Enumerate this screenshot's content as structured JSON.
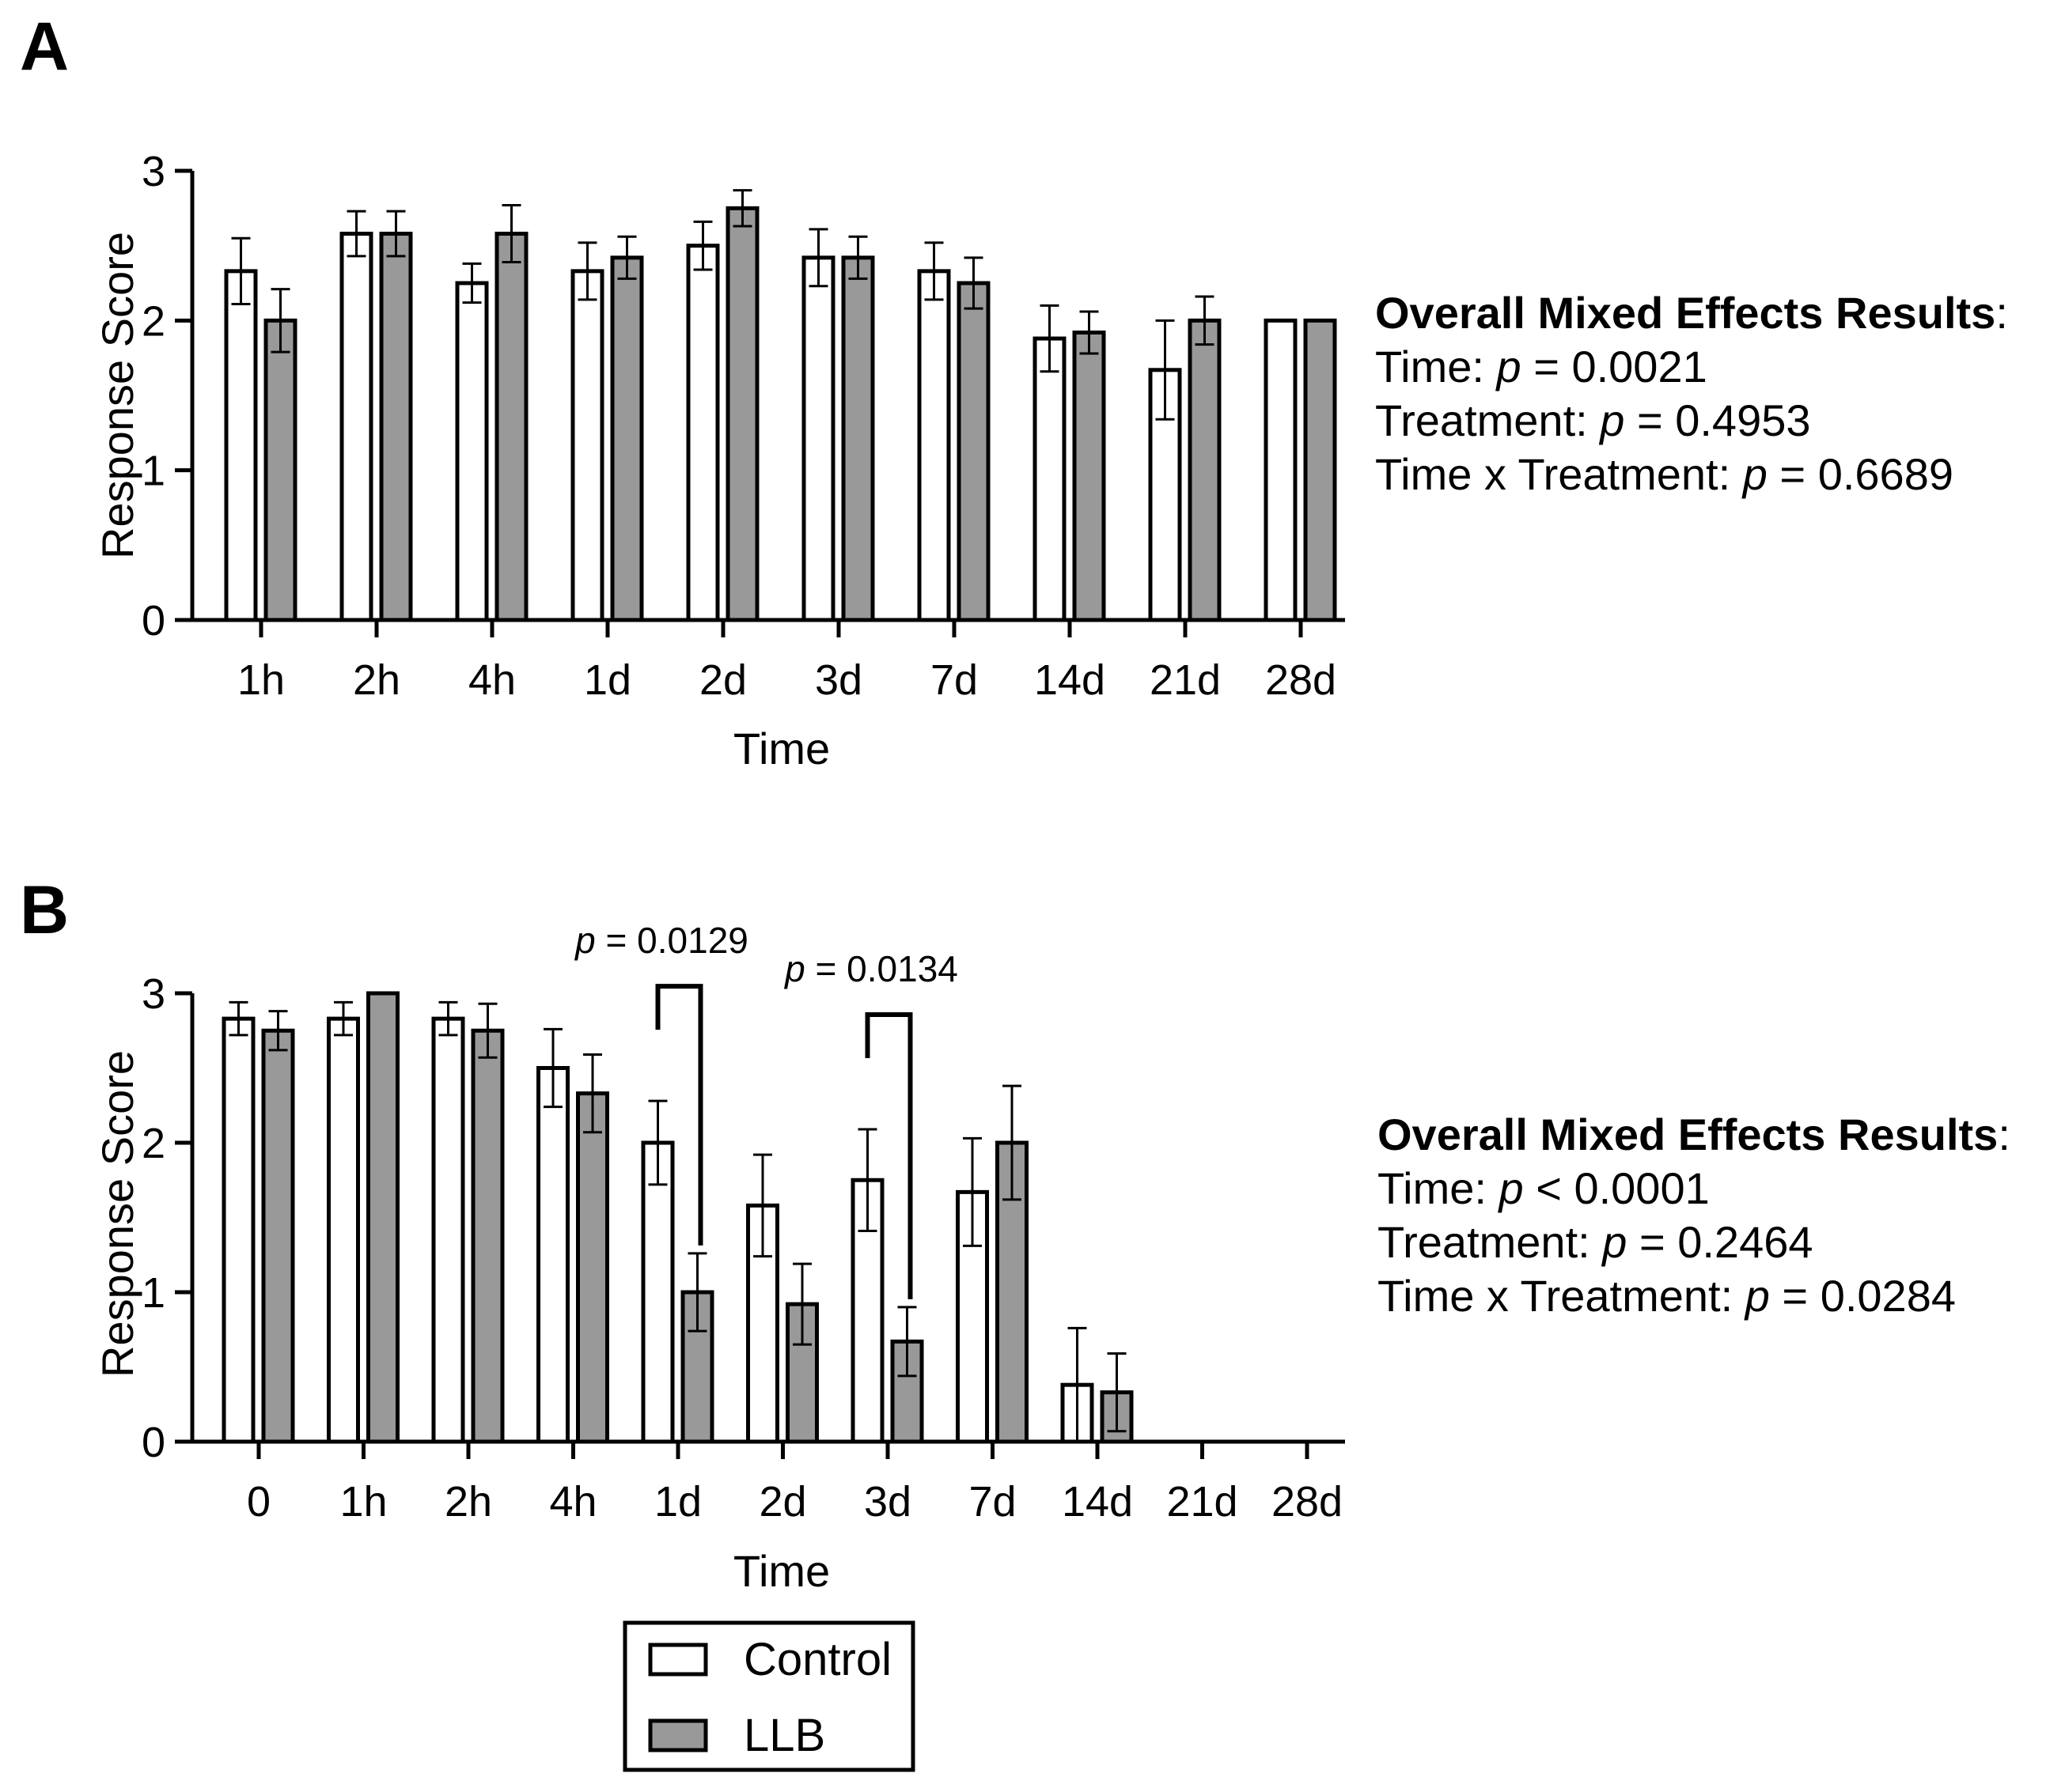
{
  "colors": {
    "control": "#ffffff",
    "llb": "#999999",
    "stroke": "#000000"
  },
  "chart_data": [
    {
      "type": "bar",
      "panel": "A",
      "xlabel": "Time",
      "ylabel": "Response Score",
      "ylim": [
        0,
        3
      ],
      "yticks": [
        0,
        1,
        2,
        3
      ],
      "categories": [
        "1h",
        "2h",
        "4h",
        "1d",
        "2d",
        "3d",
        "7d",
        "14d",
        "21d",
        "28d"
      ],
      "series": [
        {
          "name": "Control",
          "values": [
            2.33,
            2.58,
            2.25,
            2.33,
            2.5,
            2.42,
            2.33,
            1.88,
            1.67,
            2.0
          ],
          "errors": [
            0.22,
            0.15,
            0.13,
            0.19,
            0.16,
            0.19,
            0.19,
            0.22,
            0.33,
            0.0
          ]
        },
        {
          "name": "LLB",
          "values": [
            2.0,
            2.58,
            2.58,
            2.42,
            2.75,
            2.42,
            2.25,
            1.92,
            2.0,
            2.0
          ],
          "errors": [
            0.21,
            0.15,
            0.19,
            0.14,
            0.12,
            0.14,
            0.17,
            0.14,
            0.16,
            0.0
          ]
        }
      ],
      "annotations": [],
      "stats": {
        "title": "Overall Mixed Effects Results",
        "title_colon": ":",
        "lines": [
          {
            "label": "Time: ",
            "p": "p",
            "rest": " = 0.0021"
          },
          {
            "label": "Treatment: ",
            "p": "p",
            "rest": " = 0.4953"
          },
          {
            "label": "Time x Treatment: ",
            "p": "p",
            "rest": " = 0.6689"
          }
        ]
      }
    },
    {
      "type": "bar",
      "panel": "B",
      "xlabel": "Time",
      "ylabel": "Response Score",
      "ylim": [
        0,
        3
      ],
      "yticks": [
        0,
        1,
        2,
        3
      ],
      "categories": [
        "0",
        "1h",
        "2h",
        "4h",
        "1d",
        "2d",
        "3d",
        "7d",
        "14d",
        "21d",
        "28d"
      ],
      "series": [
        {
          "name": "Control",
          "values": [
            2.83,
            2.83,
            2.83,
            2.5,
            2.0,
            1.58,
            1.75,
            1.67,
            0.38,
            null,
            null
          ],
          "errors": [
            0.11,
            0.11,
            0.11,
            0.26,
            0.28,
            0.34,
            0.34,
            0.36,
            0.38,
            0,
            0
          ]
        },
        {
          "name": "LLB",
          "values": [
            2.75,
            3.0,
            2.75,
            2.33,
            1.0,
            0.92,
            0.67,
            2.0,
            0.33,
            null,
            null
          ],
          "errors": [
            0.13,
            0.0,
            0.18,
            0.26,
            0.26,
            0.27,
            0.23,
            0.38,
            0.26,
            0,
            0
          ]
        }
      ],
      "annotations": [
        {
          "category_index": 4,
          "p": "p",
          "text": " = 0.0129"
        },
        {
          "category_index": 6,
          "p": "p",
          "text": " = 0.0134"
        }
      ],
      "stats": {
        "title": "Overall Mixed Effects Results",
        "title_colon": ":",
        "lines": [
          {
            "label": "Time: ",
            "p": "p",
            "rest": " < 0.0001"
          },
          {
            "label": "Treatment: ",
            "p": "p",
            "rest": " = 0.2464"
          },
          {
            "label": "Time x Treatment: ",
            "p": "p",
            "rest": " = 0.0284"
          }
        ]
      }
    }
  ],
  "legend": {
    "items": [
      "Control",
      "LLB"
    ]
  }
}
